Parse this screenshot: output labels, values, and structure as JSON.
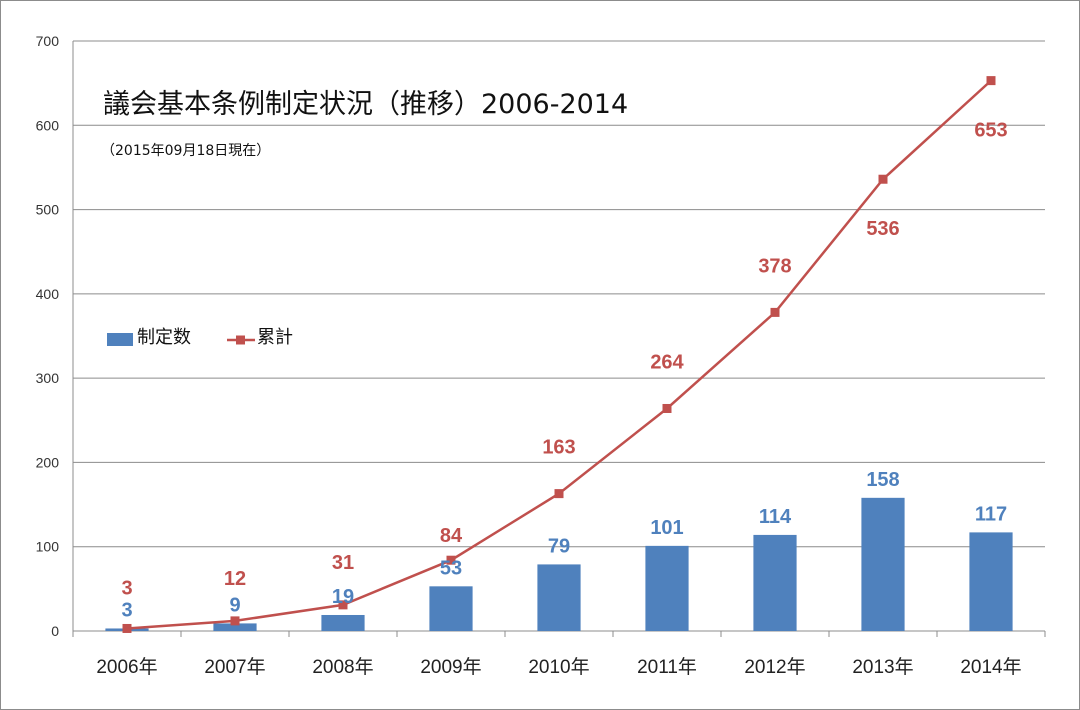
{
  "chart_data": {
    "type": "bar",
    "title": "議会基本条例制定状況（推移）2006-2014",
    "subtitle": "（2015年09月18日現在）",
    "categories": [
      "2006年",
      "2007年",
      "2008年",
      "2009年",
      "2010年",
      "2011年",
      "2012年",
      "2013年",
      "2014年"
    ],
    "series": [
      {
        "name": "制定数",
        "kind": "bar",
        "color": "#4f81bd",
        "values": [
          3,
          9,
          19,
          53,
          79,
          101,
          114,
          158,
          117
        ]
      },
      {
        "name": "累計",
        "kind": "line",
        "marker": "square",
        "color": "#c0504d",
        "values": [
          3,
          12,
          31,
          84,
          163,
          264,
          378,
          536,
          653
        ]
      }
    ],
    "ylim": [
      0,
      700
    ],
    "yticks": [
      0,
      100,
      200,
      300,
      400,
      500,
      600,
      700
    ],
    "grid": true,
    "legend": "left",
    "data_labels": true
  }
}
